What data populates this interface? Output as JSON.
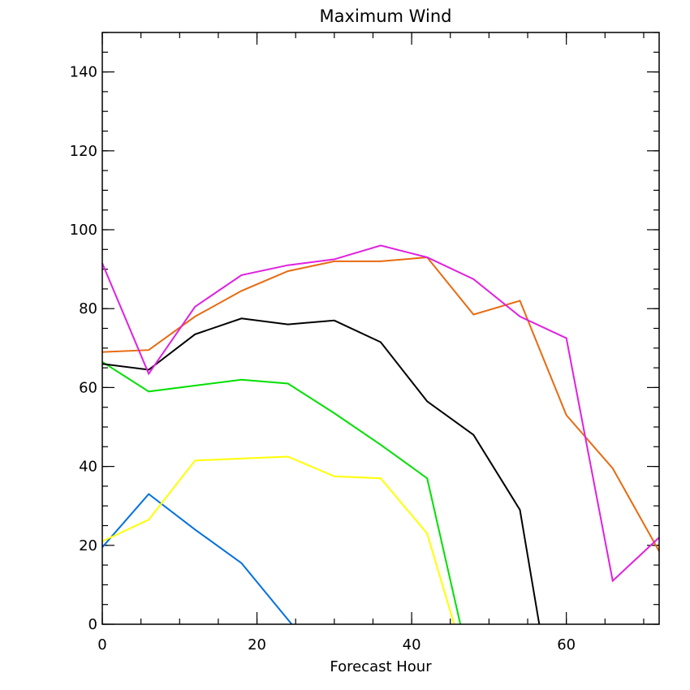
{
  "chart_data": {
    "type": "line",
    "title": "Maximum Wind",
    "xlabel": "Forecast Hour",
    "ylabel": "",
    "xlim": [
      0,
      72
    ],
    "ylim": [
      0,
      150
    ],
    "x_ticks": [
      0,
      20,
      40,
      60
    ],
    "x_tick_labels": [
      "0",
      "20",
      "40",
      "60"
    ],
    "y_ticks": [
      0,
      20,
      40,
      60,
      80,
      100,
      120,
      140
    ],
    "y_tick_labels": [
      "0",
      "20",
      "40",
      "60",
      "80",
      "100",
      "120",
      "140"
    ],
    "x_minor_step": 5,
    "y_minor_step": 5,
    "grid": false,
    "series": [
      {
        "color": "#0070e0",
        "points": [
          [
            0,
            19.5
          ],
          [
            6,
            33
          ],
          [
            12,
            24
          ],
          [
            18,
            15.5
          ],
          [
            24.5,
            0
          ]
        ]
      },
      {
        "color": "#ffff00",
        "points": [
          [
            0,
            21
          ],
          [
            6,
            26.5
          ],
          [
            12,
            41.5
          ],
          [
            18,
            42
          ],
          [
            24,
            42.5
          ],
          [
            30,
            37.5
          ],
          [
            36,
            37
          ],
          [
            42,
            23
          ],
          [
            45.5,
            0
          ]
        ]
      },
      {
        "color": "#00e000",
        "points": [
          [
            0,
            66.5
          ],
          [
            6,
            59
          ],
          [
            12,
            60.5
          ],
          [
            18,
            62
          ],
          [
            24,
            61
          ],
          [
            30,
            53.5
          ],
          [
            36,
            45.5
          ],
          [
            42,
            37
          ],
          [
            46.3,
            0
          ]
        ]
      },
      {
        "color": "#000000",
        "points": [
          [
            0,
            66
          ],
          [
            6,
            64.5
          ],
          [
            12,
            73.5
          ],
          [
            18,
            77.5
          ],
          [
            24,
            76
          ],
          [
            30,
            77
          ],
          [
            36,
            71.5
          ],
          [
            42,
            56.5
          ],
          [
            48,
            48
          ],
          [
            54,
            29
          ],
          [
            56.5,
            0
          ]
        ]
      },
      {
        "color": "#e86a10",
        "points": [
          [
            0,
            69
          ],
          [
            6,
            69.5
          ],
          [
            12,
            78
          ],
          [
            18,
            84.5
          ],
          [
            24,
            89.5
          ],
          [
            30,
            92
          ],
          [
            36,
            92
          ],
          [
            42,
            93
          ],
          [
            48,
            78.5
          ],
          [
            54,
            82
          ],
          [
            60,
            53
          ],
          [
            66,
            39.5
          ],
          [
            72,
            18.5
          ]
        ]
      },
      {
        "color": "#e020e0",
        "points": [
          [
            0,
            91.5
          ],
          [
            6,
            63.5
          ],
          [
            12,
            80.5
          ],
          [
            18,
            88.5
          ],
          [
            24,
            91
          ],
          [
            30,
            92.5
          ],
          [
            36,
            96
          ],
          [
            42,
            93
          ],
          [
            48,
            87.5
          ],
          [
            54,
            78
          ],
          [
            60,
            72.5
          ],
          [
            66,
            11
          ],
          [
            72,
            22
          ]
        ]
      }
    ]
  }
}
